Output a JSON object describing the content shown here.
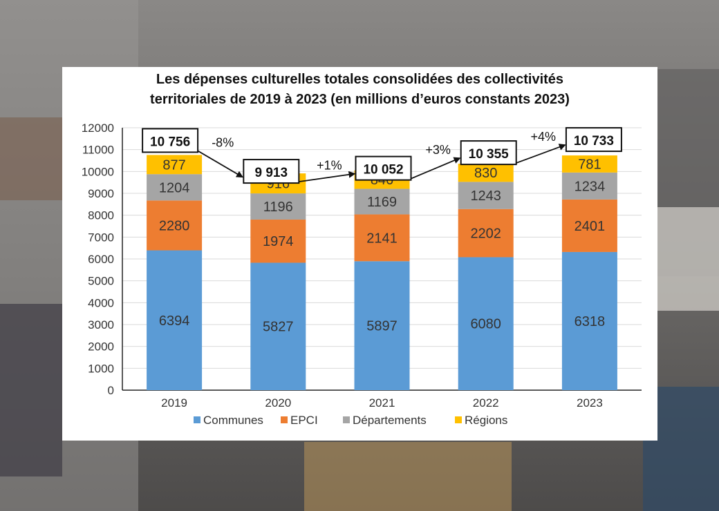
{
  "chart_data": {
    "type": "bar",
    "stacked": true,
    "title_line1": "Les dépenses culturelles totales consolidées des collectivités",
    "title_line2": "territoriales de 2019 à 2023 (en millions d’euros constants 2023)",
    "categories": [
      "2019",
      "2020",
      "2021",
      "2022",
      "2023"
    ],
    "series": [
      {
        "name": "Communes",
        "color": "#5b9bd5",
        "values": [
          6394,
          5827,
          5897,
          6080,
          6318
        ]
      },
      {
        "name": "EPCI",
        "color": "#ed7d31",
        "values": [
          2280,
          1974,
          2141,
          2202,
          2401
        ]
      },
      {
        "name": "Départements",
        "color": "#a5a5a5",
        "values": [
          1204,
          1196,
          1169,
          1243,
          1234
        ]
      },
      {
        "name": "Régions",
        "color": "#ffc000",
        "values": [
          877,
          916,
          846,
          830,
          781
        ]
      }
    ],
    "totals": [
      "10 756",
      "9 913",
      "10 052",
      "10 355",
      "10 733"
    ],
    "changes": [
      "-8%",
      "+1%",
      "+3%",
      "+4%"
    ],
    "ylim": [
      0,
      12000
    ],
    "yticks": [
      0,
      1000,
      2000,
      3000,
      4000,
      5000,
      6000,
      7000,
      8000,
      9000,
      10000,
      11000,
      12000
    ],
    "grid": true,
    "legend_position": "bottom"
  }
}
